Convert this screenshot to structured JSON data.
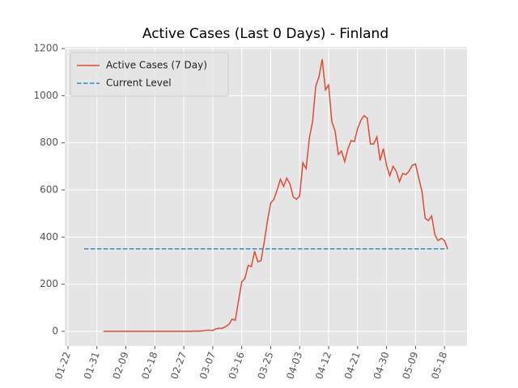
{
  "chart_data": {
    "type": "line",
    "title": "Active Cases (Last 0 Days) - Finland",
    "legend": "upper left",
    "grid": true,
    "xlim": [
      "01-21",
      "05-25"
    ],
    "xticks": [
      "01-22",
      "01-31",
      "02-09",
      "02-18",
      "02-27",
      "03-07",
      "03-16",
      "03-25",
      "04-03",
      "04-12",
      "04-21",
      "04-30",
      "05-09",
      "05-18"
    ],
    "ylim": [
      -62,
      1207
    ],
    "yticks": [
      0,
      200,
      400,
      600,
      800,
      1000,
      1200
    ],
    "series": [
      {
        "name": "Active Cases (7 Day)",
        "color": "#e24a33",
        "style": "solid",
        "x": [
          "02-02",
          "02-03",
          "02-04",
          "02-05",
          "02-06",
          "02-07",
          "02-08",
          "02-09",
          "02-10",
          "02-11",
          "02-12",
          "02-13",
          "02-14",
          "02-15",
          "02-16",
          "02-17",
          "02-18",
          "02-19",
          "02-20",
          "02-21",
          "02-22",
          "02-23",
          "02-24",
          "02-25",
          "02-26",
          "02-27",
          "02-28",
          "02-29",
          "03-01",
          "03-02",
          "03-03",
          "03-04",
          "03-05",
          "03-06",
          "03-07",
          "03-08",
          "03-09",
          "03-10",
          "03-11",
          "03-12",
          "03-13",
          "03-14",
          "03-15",
          "03-16",
          "03-17",
          "03-18",
          "03-19",
          "03-20",
          "03-21",
          "03-22",
          "03-23",
          "03-24",
          "03-25",
          "03-26",
          "03-27",
          "03-28",
          "03-29",
          "03-30",
          "03-31",
          "04-01",
          "04-02",
          "04-03",
          "04-04",
          "04-05",
          "04-06",
          "04-07",
          "04-08",
          "04-09",
          "04-10",
          "04-11",
          "04-12",
          "04-13",
          "04-14",
          "04-15",
          "04-16",
          "04-17",
          "04-18",
          "04-19",
          "04-20",
          "04-21",
          "04-22",
          "04-23",
          "04-24",
          "04-25",
          "04-26",
          "04-27",
          "04-28",
          "04-29",
          "04-30",
          "05-01",
          "05-02",
          "05-03",
          "05-04",
          "05-05",
          "05-06",
          "05-07",
          "05-08",
          "05-09",
          "05-10",
          "05-11",
          "05-12",
          "05-13",
          "05-14",
          "05-15",
          "05-16",
          "05-17",
          "05-18",
          "05-19"
        ],
        "values": [
          0,
          0,
          0,
          0,
          0,
          0,
          0,
          0,
          0,
          0,
          0,
          0,
          0,
          0,
          0,
          0,
          0,
          0,
          0,
          0,
          0,
          0,
          0,
          0,
          0,
          0,
          0,
          0,
          1,
          1,
          1,
          2,
          5,
          5,
          4,
          11,
          13,
          13,
          20,
          30,
          52,
          47,
          130,
          210,
          225,
          280,
          275,
          340,
          295,
          300,
          380,
          470,
          545,
          560,
          600,
          645,
          615,
          650,
          625,
          570,
          560,
          575,
          715,
          690,
          820,
          890,
          1040,
          1080,
          1155,
          1025,
          1045,
          890,
          850,
          750,
          765,
          720,
          775,
          810,
          805,
          860,
          895,
          915,
          905,
          795,
          795,
          825,
          725,
          775,
          705,
          660,
          700,
          680,
          635,
          670,
          665,
          680,
          705,
          710,
          650,
          595,
          480,
          470,
          490,
          410,
          385,
          395,
          385,
          350
        ]
      },
      {
        "name": "Current Level",
        "color": "#348abd",
        "style": "dashed",
        "x": [
          "01-27",
          "05-19"
        ],
        "values": [
          350,
          350
        ]
      }
    ]
  }
}
